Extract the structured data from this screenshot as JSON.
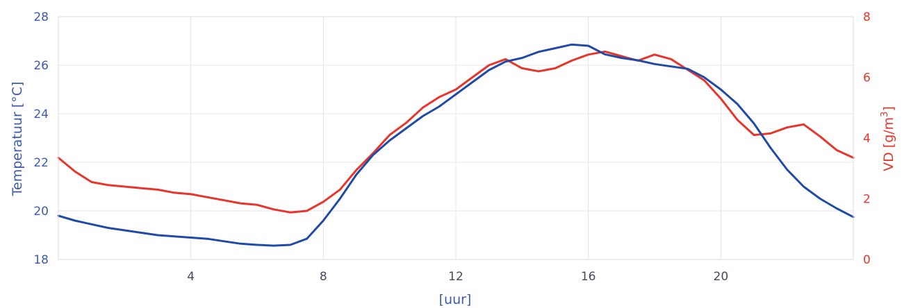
{
  "chart_data": {
    "type": "line",
    "xlabel": "[uur]",
    "ylabel_left": "Temperatuur [°C]",
    "ylabel_right_base": "VD [g/m",
    "ylabel_right_sup": "3",
    "ylabel_right_end": "]",
    "xlim": [
      0,
      24
    ],
    "xticks": [
      4,
      8,
      12,
      16,
      20
    ],
    "ylim_left": [
      18,
      28
    ],
    "yticks_left": [
      18,
      20,
      22,
      24,
      26,
      28
    ],
    "ylim_right": [
      0,
      8
    ],
    "yticks_right": [
      0,
      2,
      4,
      6,
      8
    ],
    "grid": true,
    "colors": {
      "temperature": "#1f4aa8",
      "vd": "#e8352b",
      "left_axis": "#3c5bb0",
      "right_axis": "#e8352b",
      "grid": "#e4e4ee"
    },
    "series": [
      {
        "axis": "left",
        "x": [
          0,
          0.5,
          1,
          1.5,
          2,
          2.5,
          3,
          3.5,
          4,
          4.5,
          5,
          5.5,
          6,
          6.5,
          7,
          7.5,
          8,
          8.5,
          9,
          9.5,
          10,
          10.5,
          11,
          11.5,
          12,
          12.5,
          13,
          13.5,
          14,
          14.5,
          15,
          15.5,
          16,
          16.5,
          17,
          17.5,
          18,
          18.5,
          19,
          19.5,
          20,
          20.5,
          21,
          21.5,
          22,
          22.5,
          23,
          23.5,
          24
        ],
        "values": [
          19.8,
          19.6,
          19.45,
          19.3,
          19.2,
          19.1,
          19.0,
          18.95,
          18.9,
          18.85,
          18.75,
          18.65,
          18.6,
          18.57,
          18.6,
          18.85,
          19.6,
          20.5,
          21.5,
          22.3,
          22.9,
          23.4,
          23.9,
          24.3,
          24.8,
          25.3,
          25.8,
          26.15,
          26.3,
          26.55,
          26.7,
          26.85,
          26.8,
          26.45,
          26.3,
          26.2,
          26.05,
          25.95,
          25.85,
          25.5,
          25.0,
          24.4,
          23.6,
          22.6,
          21.7,
          21.0,
          20.5,
          20.1,
          19.75
        ]
      },
      {
        "axis": "right",
        "x": [
          0,
          0.5,
          1,
          1.5,
          2,
          2.5,
          3,
          3.5,
          4,
          4.5,
          5,
          5.5,
          6,
          6.5,
          7,
          7.5,
          8,
          8.5,
          9,
          9.5,
          10,
          10.5,
          11,
          11.5,
          12,
          12.5,
          13,
          13.5,
          14,
          14.5,
          15,
          15.5,
          16,
          16.5,
          17,
          17.5,
          18,
          18.5,
          19,
          19.5,
          20,
          20.5,
          21,
          21.5,
          22,
          22.5,
          23,
          23.5,
          24
        ],
        "values": [
          3.35,
          2.9,
          2.55,
          2.45,
          2.4,
          2.35,
          2.3,
          2.2,
          2.15,
          2.05,
          1.95,
          1.85,
          1.8,
          1.65,
          1.55,
          1.6,
          1.9,
          2.3,
          2.95,
          3.5,
          4.1,
          4.5,
          5.0,
          5.35,
          5.6,
          6.0,
          6.4,
          6.6,
          6.3,
          6.2,
          6.3,
          6.55,
          6.75,
          6.85,
          6.7,
          6.55,
          6.75,
          6.6,
          6.25,
          5.9,
          5.3,
          4.6,
          4.1,
          4.15,
          4.35,
          4.45,
          4.05,
          3.6,
          3.35
        ]
      }
    ]
  }
}
